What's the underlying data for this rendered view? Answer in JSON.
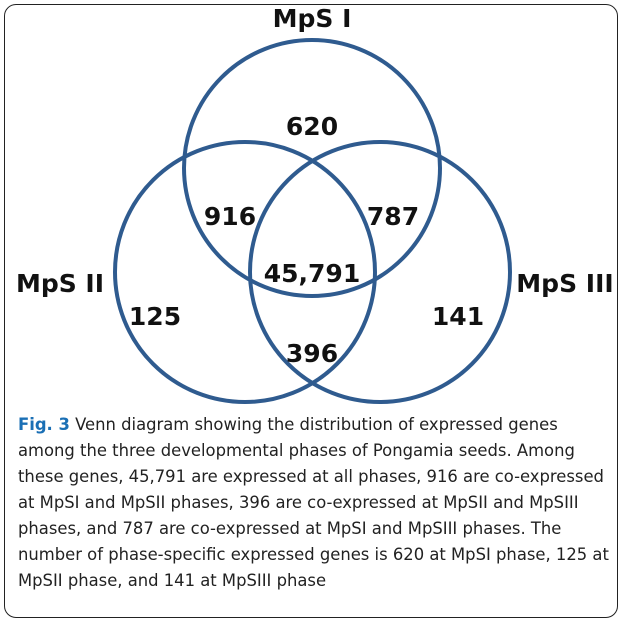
{
  "diagram": {
    "sets": [
      {
        "label": "MpS I"
      },
      {
        "label": "MpS II"
      },
      {
        "label": "MpS III"
      }
    ],
    "regions": {
      "only_1": "620",
      "only_2": "125",
      "only_3": "141",
      "1_2": "916",
      "1_3": "787",
      "2_3": "396",
      "all": "45,791"
    }
  },
  "caption": {
    "label": "Fig. 3",
    "text": "Venn diagram showing the distribution of expressed genes among the three developmental phases of Pongamia seeds. Among these genes, 45,791 are expressed at all phases, 916 are co-expressed at MpSI and MpSII phases, 396 are co-expressed at MpSII and MpSIII phases, and 787 are co-expressed at MpSI and MpSIII phases. The number of phase-specific expressed genes is 620 at MpSI phase, 125 at MpSII phase, and 141 at MpSIII phase"
  }
}
